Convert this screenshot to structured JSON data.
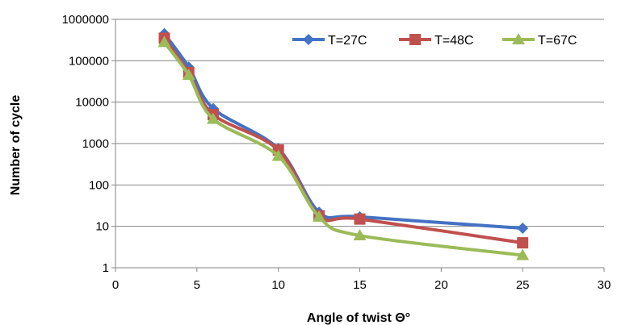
{
  "chart_data": {
    "type": "line",
    "title": "",
    "xlabel": "Angle of twist Θ°",
    "ylabel": "Number of cycle",
    "xlim": [
      0,
      30
    ],
    "ylim": [
      1,
      1000000
    ],
    "yscale": "log",
    "xticks": [
      "0",
      "5",
      "10",
      "15",
      "20",
      "25",
      "30"
    ],
    "yticks": [
      "1",
      "10",
      "100",
      "1000",
      "10000",
      "100000",
      "1000000"
    ],
    "grid": "horizontal",
    "legend_position": "top-right",
    "x": [
      3,
      4.5,
      6,
      10,
      12.5,
      15,
      25
    ],
    "series": [
      {
        "name": "T=27C",
        "color": "#4472C4",
        "marker": "diamond",
        "values": [
          450000,
          70000,
          7000,
          750,
          22,
          17,
          9
        ]
      },
      {
        "name": "T=48C",
        "color": "#C0504D",
        "marker": "square",
        "values": [
          350000,
          52000,
          5000,
          700,
          18,
          15,
          4
        ]
      },
      {
        "name": "T=67C",
        "color": "#9BBB59",
        "marker": "triangle",
        "values": [
          280000,
          45000,
          3900,
          500,
          17,
          6,
          2
        ]
      }
    ]
  }
}
